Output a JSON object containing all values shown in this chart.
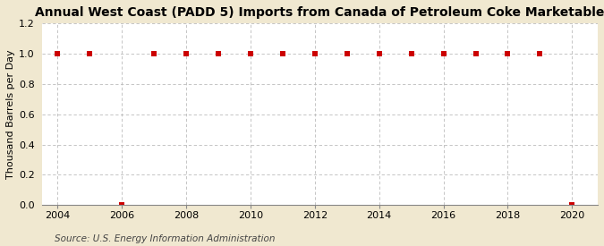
{
  "title": "Annual West Coast (PADD 5) Imports from Canada of Petroleum Coke Marketable",
  "ylabel": "Thousand Barrels per Day",
  "source": "Source: U.S. Energy Information Administration",
  "background_color": "#f0e8d0",
  "plot_bg_color": "#ffffff",
  "x_data": [
    2004,
    2005,
    2006,
    2007,
    2008,
    2009,
    2010,
    2011,
    2012,
    2013,
    2014,
    2015,
    2016,
    2017,
    2018,
    2019,
    2020
  ],
  "y_data": [
    1.0,
    1.0,
    0.0,
    1.0,
    1.0,
    1.0,
    1.0,
    1.0,
    1.0,
    1.0,
    1.0,
    1.0,
    1.0,
    1.0,
    1.0,
    1.0,
    0.0
  ],
  "marker_color": "#cc0000",
  "marker_size": 4,
  "marker_style": "s",
  "ylim": [
    0.0,
    1.2
  ],
  "yticks": [
    0.0,
    0.2,
    0.4,
    0.6,
    0.8,
    1.0,
    1.2
  ],
  "xlim": [
    2003.5,
    2020.8
  ],
  "xticks": [
    2004,
    2006,
    2008,
    2010,
    2012,
    2014,
    2016,
    2018,
    2020
  ],
  "grid_color": "#bbbbbb",
  "title_fontsize": 10,
  "axis_fontsize": 8,
  "tick_fontsize": 8,
  "source_fontsize": 7.5
}
